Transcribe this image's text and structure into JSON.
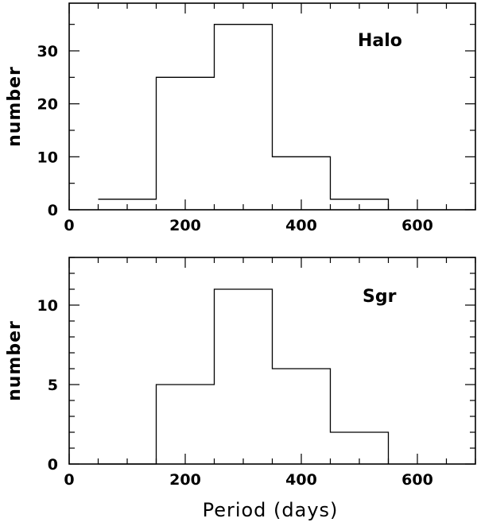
{
  "chart_data": [
    {
      "type": "bar",
      "histogram": true,
      "panel_label": "Halo",
      "xlabel": "",
      "ylabel": "number",
      "xlim": [
        0,
        700
      ],
      "ylim": [
        0,
        39
      ],
      "x_ticks": [
        0,
        200,
        400,
        600
      ],
      "y_ticks": [
        0,
        10,
        20,
        30
      ],
      "bin_edges": [
        50,
        150,
        250,
        350,
        450,
        550
      ],
      "values": [
        2,
        25,
        35,
        10,
        2
      ]
    },
    {
      "type": "bar",
      "histogram": true,
      "panel_label": "Sgr",
      "xlabel": "Period (days)",
      "ylabel": "number",
      "xlim": [
        0,
        700
      ],
      "ylim": [
        0,
        13
      ],
      "x_ticks": [
        0,
        200,
        400,
        600
      ],
      "y_ticks": [
        0,
        5,
        10
      ],
      "bin_edges": [
        50,
        150,
        250,
        350,
        450,
        550
      ],
      "values": [
        0,
        5,
        11,
        6,
        2
      ]
    }
  ]
}
